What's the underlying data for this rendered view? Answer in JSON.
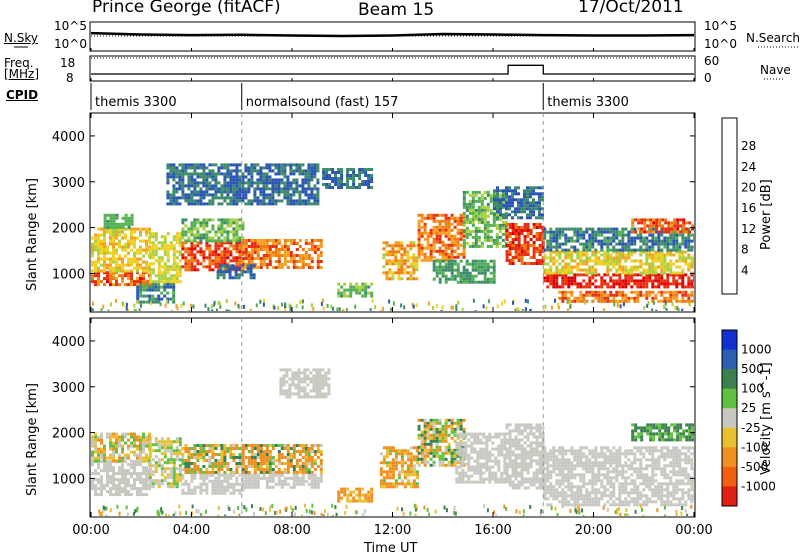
{
  "header": {
    "station": "Prince George (fitACF)",
    "beam": "Beam 15",
    "date": "17/Oct/2011"
  },
  "status_panels": {
    "nsky_label": "N.Sky",
    "nsky_ticks": [
      "10^5",
      "10^0"
    ],
    "nsearch_label": "N.Search",
    "nsearch_ticks": [
      "10^5",
      "10^0"
    ],
    "freq_label": "Freq.",
    "freq_unit": "[MHz]",
    "freq_ticks": [
      "18",
      "8"
    ],
    "nave_label": "Nave",
    "nave_ticks": [
      "60",
      "0"
    ],
    "cpid_label": "CPID"
  },
  "cpid_segments": [
    {
      "label": "themis 3300",
      "start_hour": 0,
      "end_hour": 6
    },
    {
      "label": "normalsound (fast) 157",
      "start_hour": 6,
      "end_hour": 18
    },
    {
      "label": "themis 3300",
      "start_hour": 18,
      "end_hour": 24
    }
  ],
  "axes": {
    "x_label": "Time UT",
    "x_ticks": [
      "00:00",
      "04:00",
      "08:00",
      "12:00",
      "16:00",
      "20:00",
      "00:00"
    ],
    "y_label_power": "Slant Range [km]",
    "y_label_velocity": "Slant Range [km]",
    "y_ticks": [
      "1000",
      "2000",
      "3000",
      "4000"
    ]
  },
  "colorbars": {
    "power": {
      "label": "Power [dB]",
      "ticks": [
        "4",
        "8",
        "12",
        "16",
        "20",
        "24",
        "28"
      ],
      "colors": [
        "#1530e0",
        "#2a55b5",
        "#3c8a6a",
        "#52b052",
        "#a8d040",
        "#f0d020",
        "#f5a020",
        "#f07a10",
        "#e83010",
        "#e00000"
      ]
    },
    "velocity": {
      "label": "Velocity [m s^-1]",
      "ticks": [
        "1000",
        "500",
        "100",
        "25",
        "-25",
        "-100",
        "-500",
        "-1000"
      ],
      "colors": [
        "#1530d0",
        "#2a60b0",
        "#3c8050",
        "#60c040",
        "#c8c8c0",
        "#e8c030",
        "#f09020",
        "#f06010",
        "#e02010"
      ]
    }
  },
  "chart_data": [
    {
      "type": "line",
      "title": "N.Sky / N.Search",
      "x_range_hours": [
        0,
        24
      ],
      "series": [
        {
          "name": "N.Sky",
          "x": [
            0,
            2,
            4,
            6,
            8,
            10,
            12,
            14,
            16,
            18,
            20,
            22,
            24
          ],
          "values": [
            1500,
            800,
            600,
            700,
            500,
            400,
            500,
            1000,
            800,
            600,
            500,
            500,
            600
          ]
        }
      ],
      "y_scale": "log"
    },
    {
      "type": "line",
      "title": "Freq. / Nave",
      "x_range_hours": [
        0,
        24
      ],
      "series": [
        {
          "name": "Freq.",
          "x": [
            0,
            6,
            6,
            16.6,
            16.6,
            18,
            18,
            24
          ],
          "values": [
            10.4,
            10.4,
            10.4,
            10.4,
            14.5,
            14.5,
            10.4,
            10.4
          ]
        },
        {
          "name": "Nave",
          "x": [
            0,
            24
          ],
          "values": [
            18,
            18
          ]
        }
      ],
      "ylim": [
        8,
        18
      ]
    },
    {
      "type": "heatmap",
      "title": "Power",
      "x_range_hours": [
        0,
        24
      ],
      "ylim": [
        180,
        4500
      ],
      "bands": [
        {
          "start": 0.0,
          "end": 2.3,
          "r_lo": 750,
          "r_hi": 1050,
          "v0": 28,
          "v1": 20
        },
        {
          "start": 0.0,
          "end": 2.3,
          "r_lo": 1050,
          "r_hi": 2000,
          "v0": 14,
          "v1": 20
        },
        {
          "start": 0.5,
          "end": 1.6,
          "r_lo": 2000,
          "r_hi": 2300,
          "v0": 8,
          "v1": 12
        },
        {
          "start": 1.8,
          "end": 3.3,
          "r_lo": 400,
          "r_hi": 800,
          "v0": 4,
          "v1": 10
        },
        {
          "start": 2.3,
          "end": 3.6,
          "r_lo": 850,
          "r_hi": 1900,
          "v0": 12,
          "v1": 18
        },
        {
          "start": 3.6,
          "end": 6.0,
          "r_lo": 1100,
          "r_hi": 1700,
          "v0": 22,
          "v1": 28
        },
        {
          "start": 3.6,
          "end": 6.0,
          "r_lo": 1700,
          "r_hi": 2200,
          "v0": 8,
          "v1": 14
        },
        {
          "start": 6.0,
          "end": 9.2,
          "r_lo": 1100,
          "r_hi": 1750,
          "v0": 18,
          "v1": 26
        },
        {
          "start": 5.0,
          "end": 6.5,
          "r_lo": 900,
          "r_hi": 1200,
          "v0": 4,
          "v1": 8
        },
        {
          "start": 3.0,
          "end": 9.0,
          "r_lo": 2500,
          "r_hi": 3400,
          "v0": 4,
          "v1": 8
        },
        {
          "start": 9.8,
          "end": 11.2,
          "r_lo": 500,
          "r_hi": 800,
          "v0": 8,
          "v1": 14
        },
        {
          "start": 9.2,
          "end": 11.2,
          "r_lo": 2900,
          "r_hi": 3300,
          "v0": 4,
          "v1": 8
        },
        {
          "start": 11.6,
          "end": 13.0,
          "r_lo": 900,
          "r_hi": 1700,
          "v0": 14,
          "v1": 24
        },
        {
          "start": 13.0,
          "end": 14.8,
          "r_lo": 1300,
          "r_hi": 2300,
          "v0": 18,
          "v1": 26
        },
        {
          "start": 13.6,
          "end": 16.0,
          "r_lo": 800,
          "r_hi": 1300,
          "v0": 6,
          "v1": 12
        },
        {
          "start": 14.8,
          "end": 16.5,
          "r_lo": 1600,
          "r_hi": 2800,
          "v0": 8,
          "v1": 14
        },
        {
          "start": 16.5,
          "end": 18.0,
          "r_lo": 1200,
          "r_hi": 2100,
          "v0": 22,
          "v1": 28
        },
        {
          "start": 16.0,
          "end": 18.0,
          "r_lo": 2200,
          "r_hi": 2900,
          "v0": 4,
          "v1": 8
        },
        {
          "start": 18.0,
          "end": 24.0,
          "r_lo": 700,
          "r_hi": 1000,
          "v0": 24,
          "v1": 30
        },
        {
          "start": 18.0,
          "end": 24.0,
          "r_lo": 1000,
          "r_hi": 1500,
          "v0": 12,
          "v1": 20
        },
        {
          "start": 18.6,
          "end": 24.0,
          "r_lo": 400,
          "r_hi": 620,
          "v0": 18,
          "v1": 26
        },
        {
          "start": 18.0,
          "end": 24.0,
          "r_lo": 1500,
          "r_hi": 2000,
          "v0": 4,
          "v1": 10
        },
        {
          "start": 21.5,
          "end": 24.0,
          "r_lo": 1900,
          "r_hi": 2200,
          "v0": 20,
          "v1": 28
        }
      ]
    },
    {
      "type": "heatmap",
      "title": "Velocity",
      "x_range_hours": [
        0,
        24
      ],
      "ylim": [
        180,
        4500
      ],
      "bands": [
        {
          "start": 0.0,
          "end": 2.3,
          "r_lo": 650,
          "r_hi": 1400,
          "v0": 0,
          "v1": 0
        },
        {
          "start": 0.0,
          "end": 2.3,
          "r_lo": 1400,
          "r_hi": 2000,
          "v0": -150,
          "v1": 60
        },
        {
          "start": 2.3,
          "end": 3.6,
          "r_lo": 800,
          "r_hi": 1900,
          "v0": -60,
          "v1": 60
        },
        {
          "start": 3.6,
          "end": 6.0,
          "r_lo": 1100,
          "r_hi": 1750,
          "v0": -200,
          "v1": 150
        },
        {
          "start": 3.6,
          "end": 6.0,
          "r_lo": 700,
          "r_hi": 1100,
          "v0": 0,
          "v1": 0
        },
        {
          "start": 6.0,
          "end": 9.2,
          "r_lo": 1100,
          "r_hi": 1750,
          "v0": -500,
          "v1": 200
        },
        {
          "start": 6.0,
          "end": 9.2,
          "r_lo": 800,
          "r_hi": 1100,
          "v0": 0,
          "v1": 0
        },
        {
          "start": 7.5,
          "end": 9.5,
          "r_lo": 2800,
          "r_hi": 3400,
          "v0": 0,
          "v1": 0
        },
        {
          "start": 9.8,
          "end": 11.2,
          "r_lo": 500,
          "r_hi": 800,
          "v0": -150,
          "v1": -60
        },
        {
          "start": 11.5,
          "end": 13.0,
          "r_lo": 800,
          "r_hi": 1700,
          "v0": -300,
          "v1": 50
        },
        {
          "start": 13.0,
          "end": 14.8,
          "r_lo": 1300,
          "r_hi": 2300,
          "v0": -200,
          "v1": 200
        },
        {
          "start": 14.5,
          "end": 16.5,
          "r_lo": 900,
          "r_hi": 2000,
          "v0": 0,
          "v1": 0
        },
        {
          "start": 16.5,
          "end": 18.0,
          "r_lo": 800,
          "r_hi": 2200,
          "v0": 0,
          "v1": 0
        },
        {
          "start": 18.0,
          "end": 24.0,
          "r_lo": 400,
          "r_hi": 1700,
          "v0": 0,
          "v1": 0
        },
        {
          "start": 21.5,
          "end": 24.0,
          "r_lo": 1850,
          "r_hi": 2200,
          "v0": 50,
          "v1": 200
        }
      ]
    }
  ]
}
